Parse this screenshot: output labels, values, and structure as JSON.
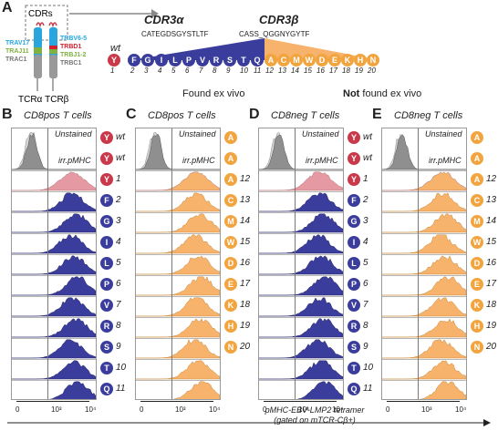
{
  "panel_labels": {
    "a": "A",
    "b": "B",
    "c": "C",
    "d": "D",
    "e": "E"
  },
  "schematic": {
    "cdrs_label": "CDRs",
    "alpha_segments": [
      "TRAV17",
      "TRAJ11",
      "TRAC1"
    ],
    "beta_segments": [
      "TRBV6-5",
      "TRBD1",
      "TRBJ1-2",
      "TRBC1"
    ],
    "chain_labels": "TCRα TCRβ",
    "colors": {
      "trav": "#2aa6df",
      "traj": "#7fb241",
      "trac": "#777777",
      "trbv": "#2aa6df",
      "trbd": "#d4212f",
      "trbj": "#7fb241",
      "trbc": "#777777"
    }
  },
  "cdr3": {
    "alpha_title": "CDR3α",
    "alpha_seq": "CATEGDSGYSTLTF",
    "beta_title": "CDR3β",
    "beta_seq": "CASS_QGGNYGYTF",
    "wt_label": "wt",
    "wt_residue": "Y",
    "found_residues": [
      "F",
      "G",
      "I",
      "L",
      "P",
      "V",
      "R",
      "S",
      "T",
      "Q"
    ],
    "found_numbers": [
      "1",
      "2",
      "3",
      "4",
      "5",
      "6",
      "7",
      "8",
      "9",
      "10",
      "11"
    ],
    "notfound_residues": [
      "A",
      "C",
      "M",
      "W",
      "D",
      "E",
      "K",
      "H",
      "N"
    ],
    "notfound_numbers": [
      "12",
      "13",
      "14",
      "15",
      "16",
      "17",
      "18",
      "19",
      "20"
    ],
    "found_caption": "Found ex vivo",
    "notfound_caption_bold": "Not",
    "notfound_caption_rest": "found ex vivo"
  },
  "panels": [
    {
      "id": "B",
      "title": "CD8pos T cells",
      "type": "blue",
      "badges": [
        {
          "l": "Y",
          "n": "wt"
        },
        {
          "l": "Y",
          "n": "wt"
        },
        {
          "l": "Y",
          "n": "1"
        },
        {
          "l": "F",
          "n": "2"
        },
        {
          "l": "G",
          "n": "3"
        },
        {
          "l": "I",
          "n": "4"
        },
        {
          "l": "L",
          "n": "5"
        },
        {
          "l": "P",
          "n": "6"
        },
        {
          "l": "V",
          "n": "7"
        },
        {
          "l": "R",
          "n": "8"
        },
        {
          "l": "S",
          "n": "9"
        },
        {
          "l": "T",
          "n": "10"
        },
        {
          "l": "Q",
          "n": "11"
        }
      ]
    },
    {
      "id": "C",
      "title": "CD8pos T cells",
      "type": "orange",
      "badges": [
        {
          "l": "A",
          "n": ""
        },
        {
          "l": "A",
          "n": ""
        },
        {
          "l": "A",
          "n": "12"
        },
        {
          "l": "C",
          "n": "13"
        },
        {
          "l": "M",
          "n": "14"
        },
        {
          "l": "W",
          "n": "15"
        },
        {
          "l": "D",
          "n": "16"
        },
        {
          "l": "E",
          "n": "17"
        },
        {
          "l": "K",
          "n": "18"
        },
        {
          "l": "H",
          "n": "19"
        },
        {
          "l": "N",
          "n": "20"
        }
      ]
    },
    {
      "id": "D",
      "title": "CD8neg T cells",
      "type": "blue",
      "badges": [
        {
          "l": "Y",
          "n": "wt"
        },
        {
          "l": "Y",
          "n": "wt"
        },
        {
          "l": "Y",
          "n": "1"
        },
        {
          "l": "F",
          "n": "2"
        },
        {
          "l": "G",
          "n": "3"
        },
        {
          "l": "I",
          "n": "4"
        },
        {
          "l": "L",
          "n": "5"
        },
        {
          "l": "P",
          "n": "6"
        },
        {
          "l": "V",
          "n": "7"
        },
        {
          "l": "R",
          "n": "8"
        },
        {
          "l": "S",
          "n": "9"
        },
        {
          "l": "T",
          "n": "10"
        },
        {
          "l": "Q",
          "n": "11"
        }
      ]
    },
    {
      "id": "E",
      "title": "CD8neg T cells",
      "type": "orange",
      "badges": [
        {
          "l": "A",
          "n": ""
        },
        {
          "l": "A",
          "n": ""
        },
        {
          "l": "A",
          "n": "12"
        },
        {
          "l": "C",
          "n": "13"
        },
        {
          "l": "M",
          "n": "14"
        },
        {
          "l": "W",
          "n": "15"
        },
        {
          "l": "D",
          "n": "16"
        },
        {
          "l": "E",
          "n": "17"
        },
        {
          "l": "K",
          "n": "18"
        },
        {
          "l": "H",
          "n": "19"
        },
        {
          "l": "N",
          "n": "20"
        }
      ]
    }
  ],
  "row_labels": {
    "unstained": "Unstained",
    "irr": "irr.pMHC"
  },
  "axis": {
    "ticks": [
      "0",
      "10³",
      "10⁴"
    ],
    "caption_line1": "pMHC-EBV-LMP2 tetramer",
    "caption_line2": "(gated on mTCR-Cβ+)"
  },
  "colors": {
    "blue": "#3a3d9c",
    "orange": "#f7b26b",
    "pink": "#e59aa3",
    "grey_light": "#d5d5d5",
    "grey_dark": "#8f8f8f",
    "badge_red": "#c9394a",
    "badge_blue": "#3a3d9c",
    "badge_orange": "#f2a43f"
  }
}
